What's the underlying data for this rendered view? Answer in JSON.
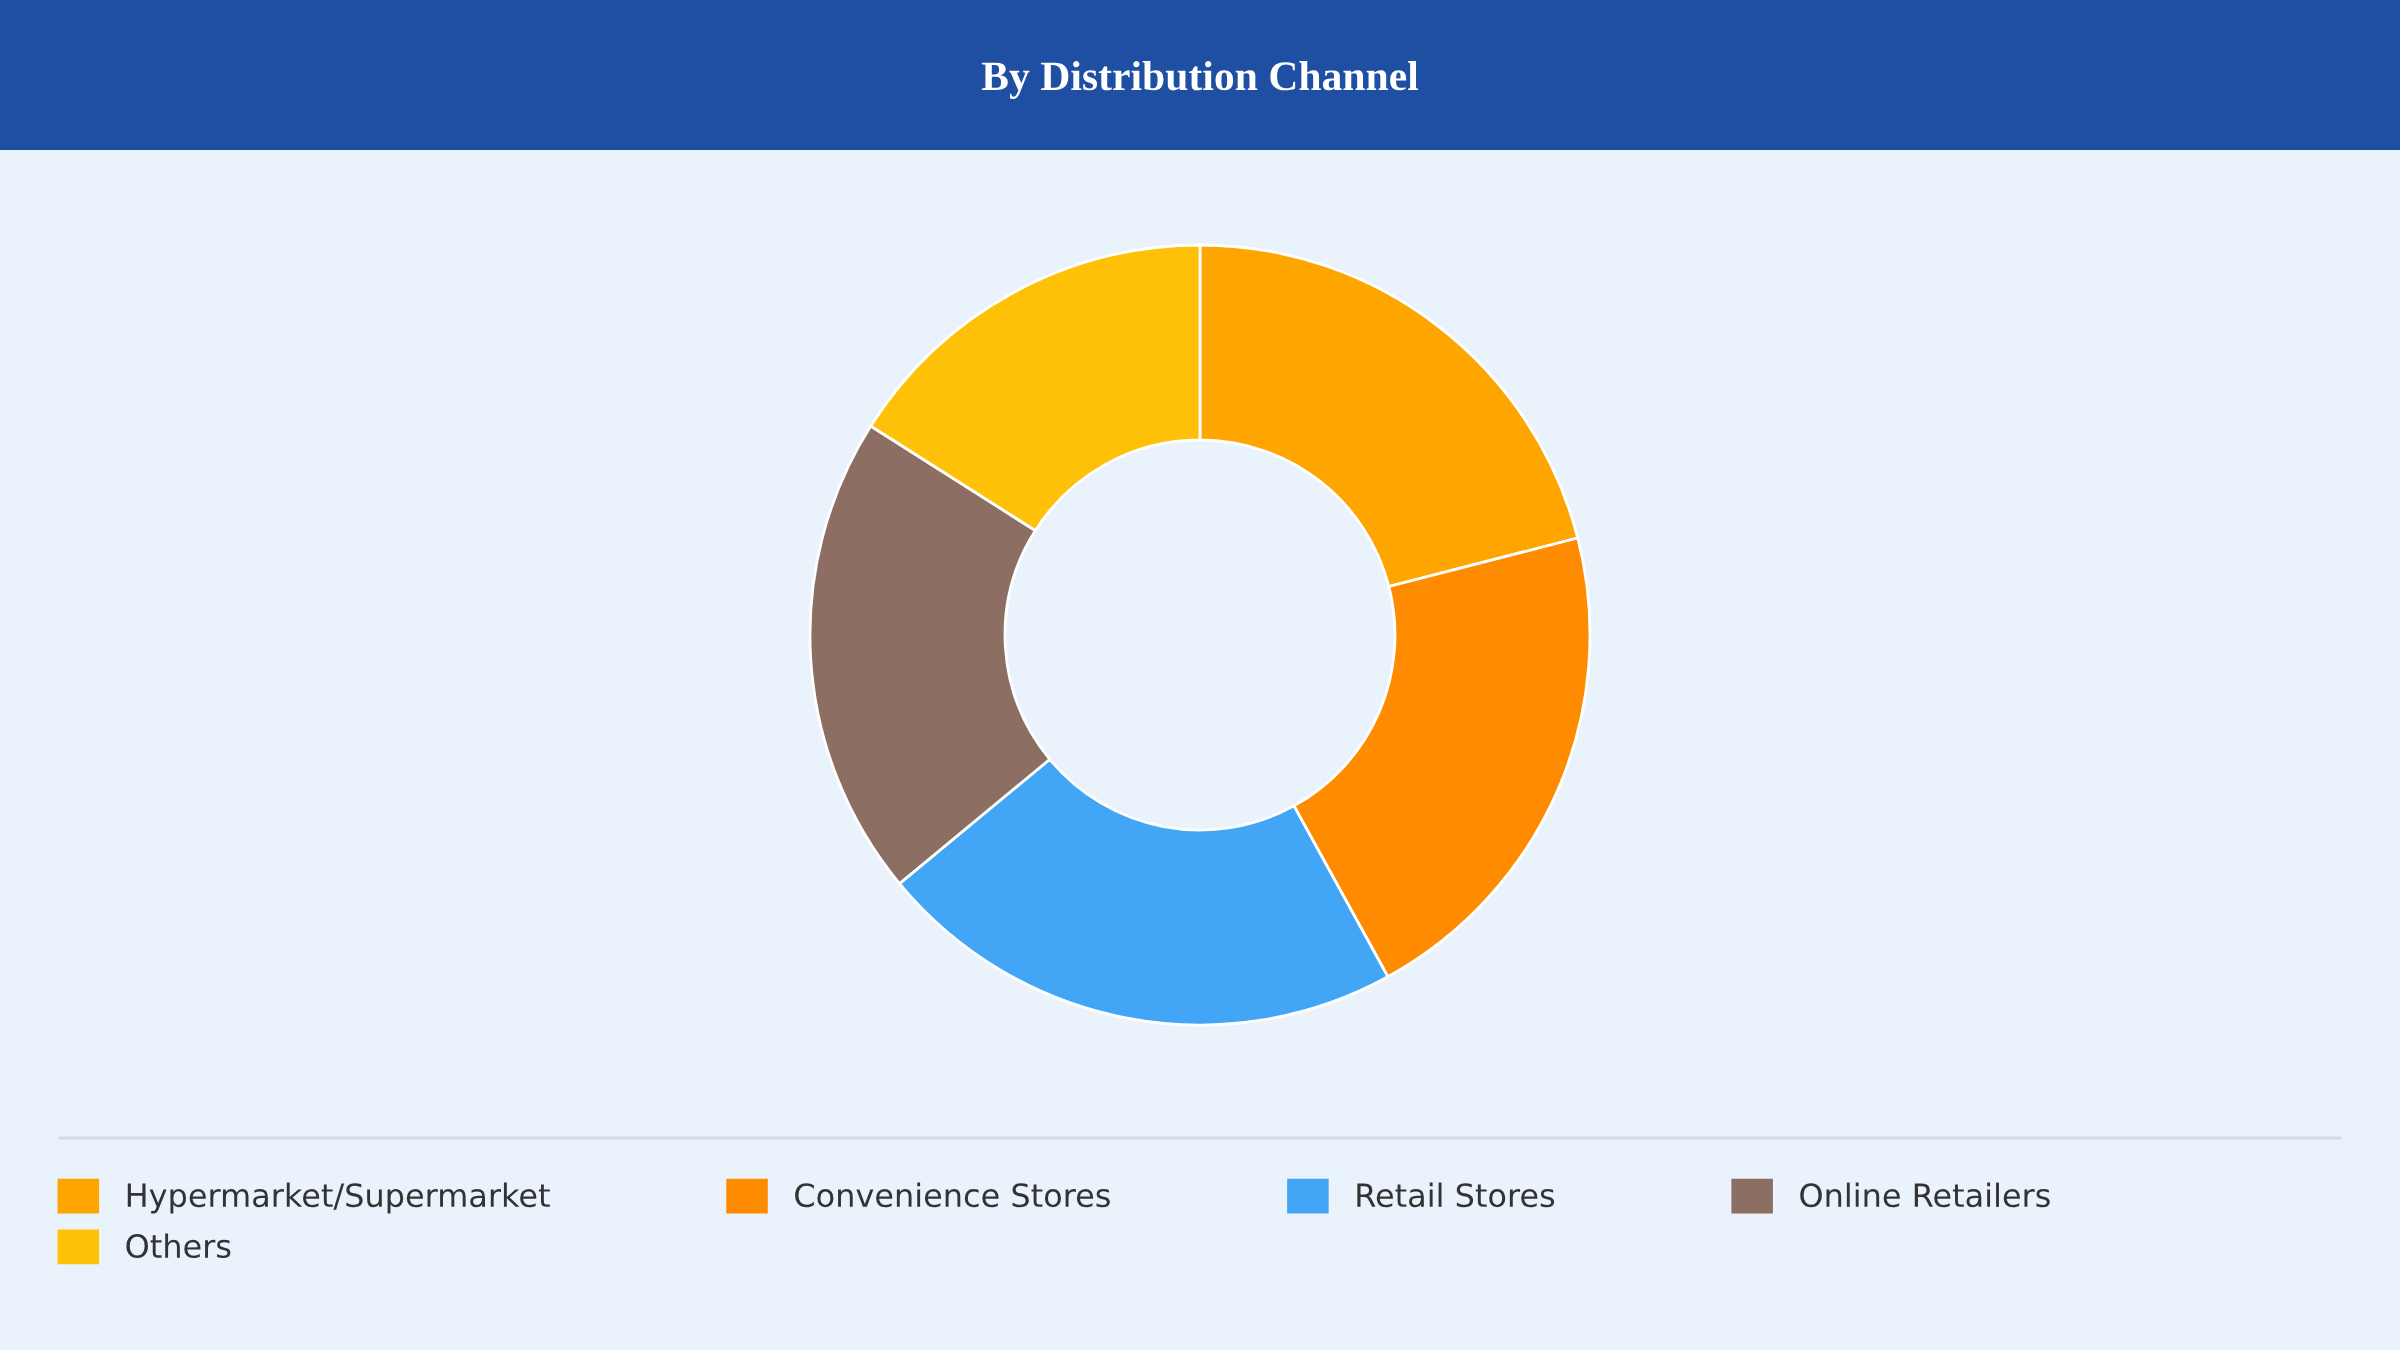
{
  "chart_data": {
    "type": "donut",
    "title": "By Distribution Channel",
    "categories": [
      "Hypermarket/Supermarket",
      "Convenience Stores",
      "Retail Stores",
      "Online Retailers",
      "Others"
    ],
    "values": [
      21,
      21,
      22,
      20,
      16
    ],
    "colors": [
      "#ffa500",
      "#ff8c00",
      "#42a5f5",
      "#8d6e63",
      "#ffc107"
    ],
    "legend": "bottom"
  }
}
